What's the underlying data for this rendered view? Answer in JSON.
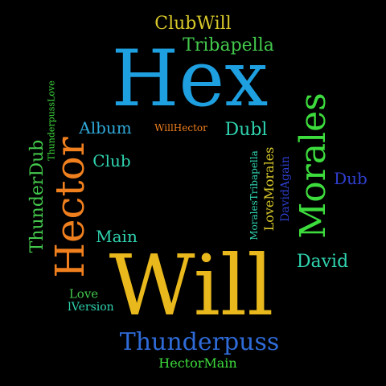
{
  "colors": {
    "background": "#000000",
    "cyan": "#1e9fe0",
    "gold": "#e8b81c",
    "orange": "#f07f1e",
    "green": "#3ddc3d",
    "light_green": "#43c84c",
    "teal": "#2fd4b0",
    "blue": "#2f6bd8",
    "dark_blue": "#2f3fd0",
    "olive": "#d8c82a"
  },
  "words": {
    "hex": "Hex",
    "will": "Will",
    "hector": "Hector",
    "morales": "Morales",
    "thunderpuss": "Thunderpuss",
    "thunderdub": "ThunderDub",
    "tribapella": "Tribapella",
    "clubwill": "ClubWill",
    "david": "David",
    "dubl": "Dubl",
    "album": "Album",
    "club": "Club",
    "main": "Main",
    "dub": "Dub",
    "lovemorales": "LoveMorales",
    "davidagain": "DavidAgain",
    "moralestribapella": "MoralesTribapella",
    "love": "Love",
    "lversion": "lVersion",
    "hectormain": "HectorMain",
    "willhector": "WillHector",
    "thunderpusslove": "ThunderpussLove"
  }
}
